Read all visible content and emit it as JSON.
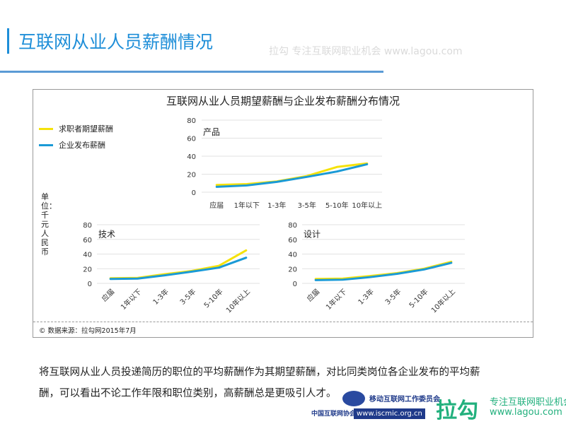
{
  "slide": {
    "title": "互联网从业人员薪酬情况",
    "body_line1": "将互联网从业人员投递简历的职位的平均薪酬作为其期望薪酬，对比同类岗位各企业发布的平均薪",
    "body_line2": "酬，可以看出不论工作年限和职位类别，高薪酬总是更吸引人才。",
    "accent_color": "#1e8ed8"
  },
  "footer": {
    "iscmic_name": "移动互联网工作委员会",
    "iscmic_url": "www.iscmic.org.cn",
    "isc_name": "中国互联网协会",
    "lagou_logo": "拉勾",
    "lagou_slogan": "专注互联网职业机会",
    "lagou_url": "www.lagou.com",
    "watermark": "拉勾 专注互联网职业机会 www.lagou.com"
  },
  "figure": {
    "title": "互联网从业人员期望薪酬与企业发布薪酬分布情况",
    "unit_label": "单位：千元人民币",
    "source": "© 数据来源：拉勾网2015年7月",
    "legend": [
      {
        "name": "求职者期望薪酬",
        "color": "#f5e20a"
      },
      {
        "name": "企业发布薪酬",
        "color": "#1a9ad6"
      }
    ]
  },
  "chart_data": [
    {
      "type": "line",
      "title": "产品",
      "categories": [
        "应届",
        "1年以下",
        "1-3年",
        "3-5年",
        "5-10年",
        "10年以上"
      ],
      "ylim": [
        0,
        80
      ],
      "yticks": [
        0,
        20,
        40,
        60,
        80
      ],
      "grid": true,
      "series": [
        {
          "name": "求职者期望薪酬",
          "values": [
            8,
            9,
            12,
            18,
            28,
            32
          ]
        },
        {
          "name": "企业发布薪酬",
          "values": [
            6,
            7.5,
            11.5,
            17,
            23,
            31
          ]
        }
      ]
    },
    {
      "type": "line",
      "title": "技术",
      "categories": [
        "应届",
        "1年以下",
        "1-3年",
        "3-5年",
        "5-10年",
        "10年以上"
      ],
      "ylim": [
        0,
        80
      ],
      "yticks": [
        0,
        20,
        40,
        60,
        80
      ],
      "grid": true,
      "series": [
        {
          "name": "求职者期望薪酬",
          "values": [
            7,
            7.5,
            12.5,
            17,
            24,
            45
          ]
        },
        {
          "name": "企业发布薪酬",
          "values": [
            6,
            6.5,
            11,
            16,
            21.5,
            35
          ]
        }
      ]
    },
    {
      "type": "line",
      "title": "设计",
      "categories": [
        "应届",
        "1年以下",
        "1-3年",
        "3-5年",
        "5-10年",
        "10年以上"
      ],
      "ylim": [
        0,
        80
      ],
      "yticks": [
        0,
        20,
        40,
        60,
        80
      ],
      "grid": true,
      "series": [
        {
          "name": "求职者期望薪酬",
          "values": [
            6,
            6.5,
            10,
            14,
            20,
            29.5
          ]
        },
        {
          "name": "企业发布薪酬",
          "values": [
            4.5,
            5,
            8.5,
            13,
            19,
            28
          ]
        }
      ]
    }
  ]
}
